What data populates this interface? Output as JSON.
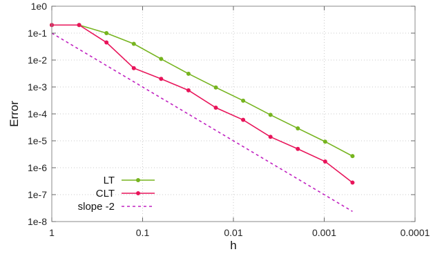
{
  "chart_data": {
    "type": "line",
    "xlabel": "h",
    "ylabel": "Error",
    "x_scale": "log",
    "y_scale": "log",
    "x_reversed": true,
    "xlim": [
      1,
      0.0001
    ],
    "ylim": [
      1e-08,
      1
    ],
    "x_ticks": [
      {
        "value": 1,
        "label": "1"
      },
      {
        "value": 0.1,
        "label": "0.1"
      },
      {
        "value": 0.01,
        "label": "0.01"
      },
      {
        "value": 0.001,
        "label": "0.001"
      },
      {
        "value": 0.0001,
        "label": "0.0001"
      }
    ],
    "y_ticks": [
      {
        "value": 1,
        "label": "1e0"
      },
      {
        "value": 0.1,
        "label": "1e-1"
      },
      {
        "value": 0.01,
        "label": "1e-2"
      },
      {
        "value": 0.001,
        "label": "1e-3"
      },
      {
        "value": 0.0001,
        "label": "1e-4"
      },
      {
        "value": 1e-05,
        "label": "1e-5"
      },
      {
        "value": 1e-06,
        "label": "1e-6"
      },
      {
        "value": 1e-07,
        "label": "1e-7"
      },
      {
        "value": 1e-08,
        "label": "1e-8"
      }
    ],
    "grid": true,
    "legend": "bottom-left",
    "series": [
      {
        "name": "LT",
        "color": "#76b41f",
        "style": "solid-with-markers",
        "x": [
          1,
          0.5,
          0.25,
          0.125,
          0.0625,
          0.03125,
          0.015625,
          0.0078125,
          0.00390625,
          0.001953125,
          0.0009765625,
          0.00048828125
        ],
        "y": [
          0.2,
          0.2,
          0.1,
          0.04,
          0.011,
          0.0031,
          0.00096,
          0.00031,
          9.2e-05,
          2.9e-05,
          9.3e-06,
          2.7e-06
        ]
      },
      {
        "name": "CLT",
        "color": "#e8145a",
        "style": "solid-with-markers",
        "x": [
          1,
          0.5,
          0.25,
          0.125,
          0.0625,
          0.03125,
          0.015625,
          0.0078125,
          0.00390625,
          0.001953125,
          0.0009765625,
          0.00048828125
        ],
        "y": [
          0.2,
          0.2,
          0.045,
          0.005,
          0.002,
          0.00075,
          0.00017,
          6e-05,
          1.4e-05,
          5e-06,
          1.7e-06,
          2.8e-07
        ]
      },
      {
        "name": "slope -2",
        "color": "#c020c0",
        "style": "dashed",
        "x": [
          1,
          0.00048828125
        ],
        "y": [
          0.1,
          2.38e-08
        ]
      }
    ]
  }
}
